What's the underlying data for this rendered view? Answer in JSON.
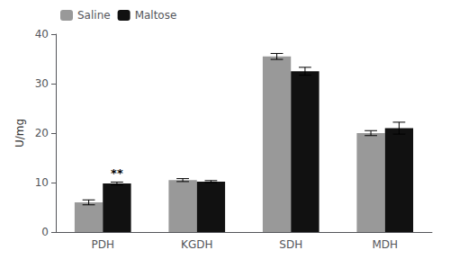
{
  "chart_data": {
    "type": "bar",
    "categories": [
      "PDH",
      "KGDH",
      "SDH",
      "MDH"
    ],
    "series": [
      {
        "name": "Saline",
        "color": "#999999",
        "values": [
          6.0,
          10.5,
          35.5,
          20.0
        ],
        "errors": [
          0.5,
          0.3,
          0.6,
          0.5
        ]
      },
      {
        "name": "Maltose",
        "color": "#111111",
        "values": [
          9.8,
          10.2,
          32.5,
          21.0
        ],
        "errors": [
          0.3,
          0.2,
          0.8,
          1.2
        ]
      }
    ],
    "ylabel": "U/mg",
    "ylim": [
      0,
      40
    ],
    "yticks": [
      0,
      10,
      20,
      30,
      40
    ],
    "grid": false,
    "legend": "upper left",
    "annotations": [
      {
        "text": "**",
        "category": "PDH",
        "series": "Maltose"
      }
    ]
  }
}
